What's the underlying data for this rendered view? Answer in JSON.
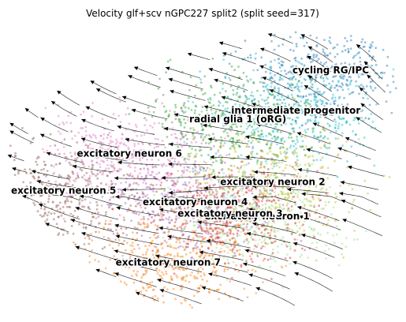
{
  "chart_data": {
    "type": "scatter",
    "title": "Velocity glf+scv nGPC227 split2 (split seed=317)",
    "xlabel": "",
    "ylabel": "",
    "xlim": [
      0,
      100
    ],
    "ylim": [
      0,
      100
    ],
    "grid": false,
    "legend": "on-data",
    "clusters": [
      {
        "name": "cycling RG/IPC",
        "x": 83,
        "y": 84,
        "color": "#1f77b4"
      },
      {
        "name": "intermediate progenitor",
        "x": 74,
        "y": 70,
        "color": "#17becf"
      },
      {
        "name": "radial glia 1 (oRG)",
        "x": 59,
        "y": 67,
        "color": "#2ca02c"
      },
      {
        "name": "excitatory neuron 6",
        "x": 31,
        "y": 55,
        "color": "#e377c2"
      },
      {
        "name": "excitatory neuron 2",
        "x": 68,
        "y": 45,
        "color": "#bcbd22"
      },
      {
        "name": "excitatory neuron 5",
        "x": 14,
        "y": 42,
        "color": "#8c564b"
      },
      {
        "name": "excitatory neuron 4",
        "x": 48,
        "y": 38,
        "color": "#9467bd"
      },
      {
        "name": "excitatory neuron 1",
        "x": 64,
        "y": 33,
        "color": "#98df8a"
      },
      {
        "name": "excitatory neuron 3",
        "x": 57,
        "y": 34,
        "color": "#d62728"
      },
      {
        "name": "excitatory neuron 7",
        "x": 41,
        "y": 17,
        "color": "#ff7f0e"
      }
    ]
  }
}
